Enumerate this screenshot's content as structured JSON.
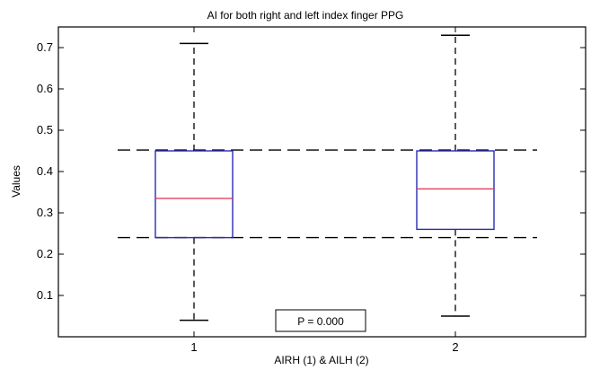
{
  "chart_data": {
    "type": "box",
    "title": "AI for both right and left index finger PPG",
    "xlabel": "AIRH (1) & AILH (2)",
    "ylabel": "Values",
    "categories": [
      "1",
      "2"
    ],
    "ylim": [
      0,
      0.75
    ],
    "yticks": [
      "0.1",
      "0.2",
      "0.3",
      "0.4",
      "0.5",
      "0.6",
      "0.7"
    ],
    "boxes": [
      {
        "category": "1",
        "whisker_low": 0.04,
        "q1": 0.24,
        "median": 0.335,
        "q3": 0.45,
        "whisker_high": 0.71
      },
      {
        "category": "2",
        "whisker_low": 0.05,
        "q1": 0.26,
        "median": 0.358,
        "q3": 0.45,
        "whisker_high": 0.73
      }
    ],
    "reference_lines": [
      0.452,
      0.24
    ],
    "annotation": "P = 0.000",
    "colors": {
      "box": "#2a2ab4",
      "median": "#e0405a",
      "whisker": "#000000",
      "axis": "#000000"
    }
  }
}
